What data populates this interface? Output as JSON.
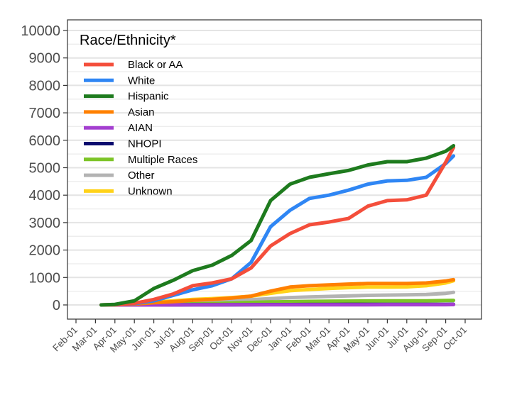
{
  "chart_data": {
    "type": "line",
    "title": "",
    "xlabel": "",
    "ylabel": "",
    "ylim": [
      -500,
      10300
    ],
    "yticks": [
      0,
      1000,
      2000,
      3000,
      4000,
      5000,
      6000,
      7000,
      8000,
      9000,
      10000
    ],
    "xlim": [
      -0.4,
      20.8
    ],
    "xtick_labels": [
      "Feb-01",
      "Mar-01",
      "Apr-01",
      "May-01",
      "Jun-01",
      "Jul-01",
      "Aug-01",
      "Sep-01",
      "Oct-01",
      "Nov-01",
      "Dec-01",
      "Jan-01",
      "Feb-01",
      "Mar-01",
      "Apr-01",
      "May-01",
      "Jun-01",
      "Jul-01",
      "Aug-01",
      "Sep-01",
      "Oct-01"
    ],
    "grid": true,
    "legend": {
      "title": "Race/Ethnicity*",
      "placement": "top-left"
    },
    "x": [
      1.3,
      2,
      3,
      4,
      5,
      6,
      7,
      8,
      9,
      10,
      11,
      12,
      13,
      14,
      15,
      16,
      17,
      18,
      19,
      19.4
    ],
    "series": [
      {
        "name": "Black or AA",
        "color": "#f44e3b",
        "values": [
          0,
          10,
          60,
          200,
          400,
          700,
          800,
          950,
          1350,
          2150,
          2600,
          2920,
          3020,
          3150,
          3600,
          3800,
          3830,
          4000,
          5200,
          5740
        ]
      },
      {
        "name": "White",
        "color": "#2f86f4",
        "values": [
          0,
          10,
          50,
          150,
          350,
          550,
          700,
          950,
          1550,
          2850,
          3450,
          3880,
          4000,
          4180,
          4400,
          4520,
          4540,
          4650,
          5150,
          5430
        ]
      },
      {
        "name": "Hispanic",
        "color": "#1e7b1e",
        "values": [
          0,
          20,
          150,
          600,
          900,
          1250,
          1450,
          1800,
          2350,
          3800,
          4400,
          4650,
          4780,
          4900,
          5100,
          5220,
          5220,
          5350,
          5600,
          5800
        ]
      },
      {
        "name": "Asian",
        "color": "#ff8000",
        "values": [
          0,
          5,
          30,
          80,
          120,
          170,
          200,
          250,
          320,
          500,
          650,
          700,
          730,
          760,
          780,
          780,
          780,
          800,
          870,
          920
        ]
      },
      {
        "name": "AIAN",
        "color": "#a43fd0",
        "values": [
          0,
          0,
          1,
          1,
          2,
          3,
          3,
          4,
          5,
          6,
          7,
          8,
          8,
          9,
          9,
          10,
          10,
          10,
          11,
          12
        ]
      },
      {
        "name": "NHOPI",
        "color": "#0a0a6e",
        "values": [
          0,
          0,
          1,
          2,
          3,
          5,
          6,
          8,
          10,
          12,
          14,
          15,
          16,
          17,
          18,
          19,
          20,
          20,
          21,
          22
        ]
      },
      {
        "name": "Multiple Races",
        "color": "#7cc427",
        "values": [
          0,
          2,
          5,
          15,
          25,
          40,
          50,
          70,
          90,
          110,
          120,
          130,
          135,
          140,
          145,
          148,
          150,
          150,
          160,
          165
        ]
      },
      {
        "name": "Other",
        "color": "#b3b3b3",
        "values": [
          0,
          2,
          10,
          30,
          50,
          80,
          100,
          140,
          190,
          230,
          270,
          290,
          310,
          330,
          350,
          360,
          370,
          380,
          420,
          460
        ]
      },
      {
        "name": "Unknown",
        "color": "#ffd21a",
        "values": [
          0,
          10,
          40,
          100,
          150,
          200,
          230,
          270,
          320,
          420,
          520,
          560,
          600,
          630,
          650,
          650,
          660,
          700,
          800,
          880
        ]
      }
    ],
    "draw_order": [
      "Other",
      "Multiple Races",
      "NHOPI",
      "AIAN",
      "Unknown",
      "Asian",
      "White",
      "Black or AA",
      "Hispanic"
    ]
  }
}
